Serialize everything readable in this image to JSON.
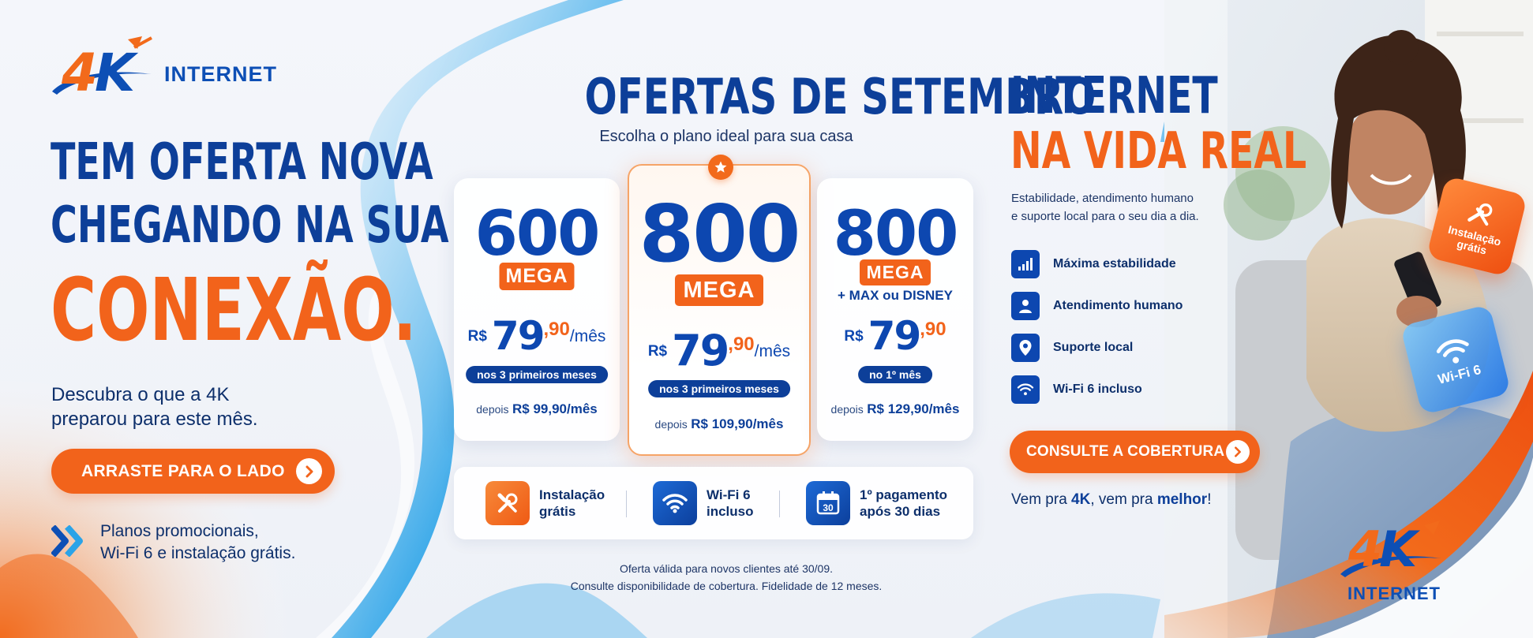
{
  "brand": {
    "logo_mark": "4K",
    "logo_word": "INTERNET",
    "colors": {
      "primary_blue": "#0d3f99",
      "accent_orange": "#f2631b",
      "light_blue": "#2aa3e8"
    }
  },
  "left": {
    "headline_line1": "TEM OFERTA NOVA",
    "headline_line2": "CHEGANDO NA SUA",
    "headline_big": "CONEXÃO.",
    "subcopy_line1": "Descubra o que a 4K",
    "subcopy_line2": "preparou para este mês.",
    "cta_label": "ARRASTE PARA O LADO",
    "cta_icon": "chevron-right-icon",
    "promo_icon": "double-chevron-right-icon",
    "promo_line1": "Planos promocionais,",
    "promo_line2": "Wi-Fi 6 e instalação grátis."
  },
  "center": {
    "title": "OFERTAS DE SETEMBRO",
    "subtitle": "Escolha o plano ideal para sua casa",
    "featured_icon": "star-icon",
    "plans": [
      {
        "speed": "600",
        "unit": "MEGA",
        "extra": "",
        "currency": "R$",
        "price_int": "79",
        "price_dec": ",90",
        "per": "/mês",
        "period": "nos 3 primeiros meses",
        "after_label": "depois",
        "after_value": "R$ 99,90/mês"
      },
      {
        "speed": "800",
        "unit": "MEGA",
        "extra": "",
        "currency": "R$",
        "price_int": "79",
        "price_dec": ",90",
        "per": "/mês",
        "period": "nos 3 primeiros meses",
        "after_label": "depois",
        "after_value": "R$ 109,90/mês"
      },
      {
        "speed": "800",
        "unit": "MEGA",
        "extra": "+ MAX ou DISNEY",
        "currency": "R$",
        "price_int": "79",
        "price_dec": ",90",
        "per": "",
        "period": "no 1º mês",
        "after_label": "depois",
        "after_value": "R$ 129,90/mês"
      }
    ],
    "features": [
      {
        "icon": "tools-icon",
        "line1": "Instalação",
        "line2": "grátis"
      },
      {
        "icon": "wifi-icon",
        "line1": "Wi-Fi 6",
        "line2": "incluso"
      },
      {
        "icon": "calendar-icon",
        "calendar_day": "30",
        "line1": "1º pagamento",
        "line2": "após 30 dias"
      }
    ],
    "footnote_line1": "Oferta válida para novos clientes até 30/09.",
    "footnote_line2": "Consulte disponibilidade de cobertura. Fidelidade de 12 meses."
  },
  "right": {
    "title_line1": "INTERNET",
    "title_line2": "NA VIDA REAL",
    "desc_line1": "Estabilidade, atendimento humano",
    "desc_line2": "e suporte local para o seu dia a dia.",
    "list": [
      {
        "icon": "signal-bars-icon",
        "label": "Máxima estabilidade"
      },
      {
        "icon": "user-icon",
        "label": "Atendimento humano"
      },
      {
        "icon": "location-pin-icon",
        "label": "Suporte local"
      },
      {
        "icon": "wifi-icon",
        "label": "Wi-Fi 6 incluso"
      }
    ],
    "cta_label": "CONSULTE A COBERTURA",
    "slogan_pre": "Vem pra ",
    "slogan_b1": "4K",
    "slogan_mid": ", vem pra ",
    "slogan_b2": "melhor",
    "slogan_end": "!",
    "badge_install_line1": "Instalação",
    "badge_install_line2": "grátis",
    "badge_wifi": "Wi-Fi 6"
  }
}
